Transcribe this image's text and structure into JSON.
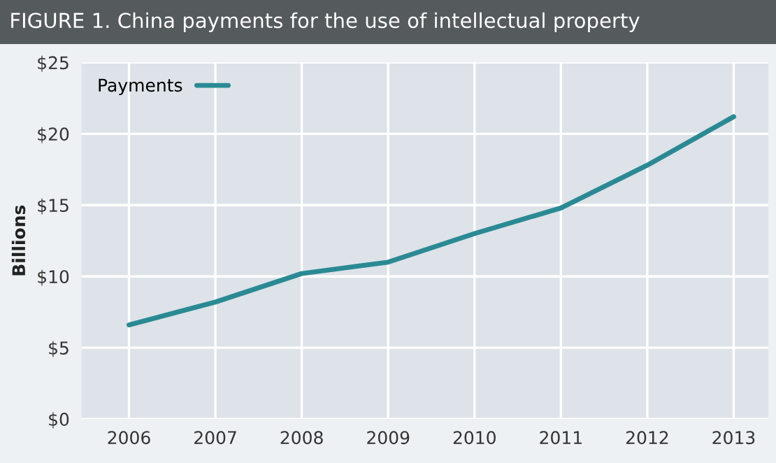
{
  "chart_data": {
    "type": "line",
    "title": "FIGURE 1. China payments for the use of intellectual property",
    "ylabel": "Billions",
    "categories": [
      "2006",
      "2007",
      "2008",
      "2009",
      "2010",
      "2011",
      "2012",
      "2013"
    ],
    "series": [
      {
        "name": "Payments",
        "color": "#2a8a94",
        "values": [
          6.6,
          8.2,
          10.2,
          11.0,
          13.0,
          14.8,
          17.8,
          21.2
        ]
      }
    ],
    "ylim": [
      0,
      25
    ],
    "yticks": [
      {
        "value": 0,
        "label": "$0"
      },
      {
        "value": 5,
        "label": "$5"
      },
      {
        "value": 10,
        "label": "$10"
      },
      {
        "value": 15,
        "label": "$15"
      },
      {
        "value": 20,
        "label": "$20"
      },
      {
        "value": 25,
        "label": "$25"
      }
    ],
    "grid": true,
    "legend": "top left",
    "marker": "none",
    "line_style": "solid"
  }
}
